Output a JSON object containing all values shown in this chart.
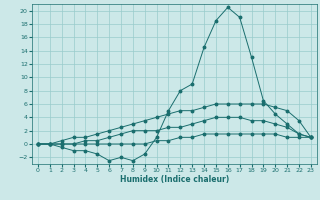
{
  "xlabel": "Humidex (Indice chaleur)",
  "background_color": "#cce8e8",
  "grid_color": "#99cccc",
  "line_color": "#1a6e6e",
  "xlim": [
    -0.5,
    23.5
  ],
  "ylim": [
    -3,
    21
  ],
  "xticks": [
    0,
    1,
    2,
    3,
    4,
    5,
    6,
    7,
    8,
    9,
    10,
    11,
    12,
    13,
    14,
    15,
    16,
    17,
    18,
    19,
    20,
    21,
    22,
    23
  ],
  "yticks": [
    -2,
    0,
    2,
    4,
    6,
    8,
    10,
    12,
    14,
    16,
    18,
    20
  ],
  "series": [
    {
      "x": [
        0,
        1,
        2,
        3,
        4,
        5,
        6,
        7,
        8,
        9,
        10,
        11,
        12,
        13,
        14,
        15,
        16,
        17,
        18,
        19,
        20,
        21,
        22,
        23
      ],
      "y": [
        0,
        0,
        -0.5,
        -1,
        -1,
        -1.5,
        -2.5,
        -2,
        -2.5,
        -1.5,
        1,
        5,
        8,
        9,
        14.5,
        18.5,
        20.5,
        19,
        13,
        6.5,
        4.5,
        3,
        1.5,
        1
      ]
    },
    {
      "x": [
        0,
        1,
        2,
        3,
        4,
        5,
        6,
        7,
        8,
        9,
        10,
        11,
        12,
        13,
        14,
        15,
        16,
        17,
        18,
        19,
        20,
        21,
        22,
        23
      ],
      "y": [
        0,
        0,
        0.5,
        1,
        1,
        1.5,
        2,
        2.5,
        3,
        3.5,
        4,
        4.5,
        5,
        5,
        5.5,
        6,
        6,
        6,
        6,
        6,
        5.5,
        5,
        3.5,
        1
      ]
    },
    {
      "x": [
        0,
        1,
        2,
        3,
        4,
        5,
        6,
        7,
        8,
        9,
        10,
        11,
        12,
        13,
        14,
        15,
        16,
        17,
        18,
        19,
        20,
        21,
        22,
        23
      ],
      "y": [
        0,
        0,
        0,
        0,
        0.5,
        0.5,
        1,
        1.5,
        2,
        2,
        2,
        2.5,
        2.5,
        3,
        3.5,
        4,
        4,
        4,
        3.5,
        3.5,
        3,
        2.5,
        1.5,
        1
      ]
    },
    {
      "x": [
        0,
        1,
        2,
        3,
        4,
        5,
        6,
        7,
        8,
        9,
        10,
        11,
        12,
        13,
        14,
        15,
        16,
        17,
        18,
        19,
        20,
        21,
        22,
        23
      ],
      "y": [
        0,
        0,
        0,
        0,
        0,
        0,
        0,
        0,
        0,
        0,
        0.5,
        0.5,
        1,
        1,
        1.5,
        1.5,
        1.5,
        1.5,
        1.5,
        1.5,
        1.5,
        1,
        1,
        1
      ]
    }
  ]
}
